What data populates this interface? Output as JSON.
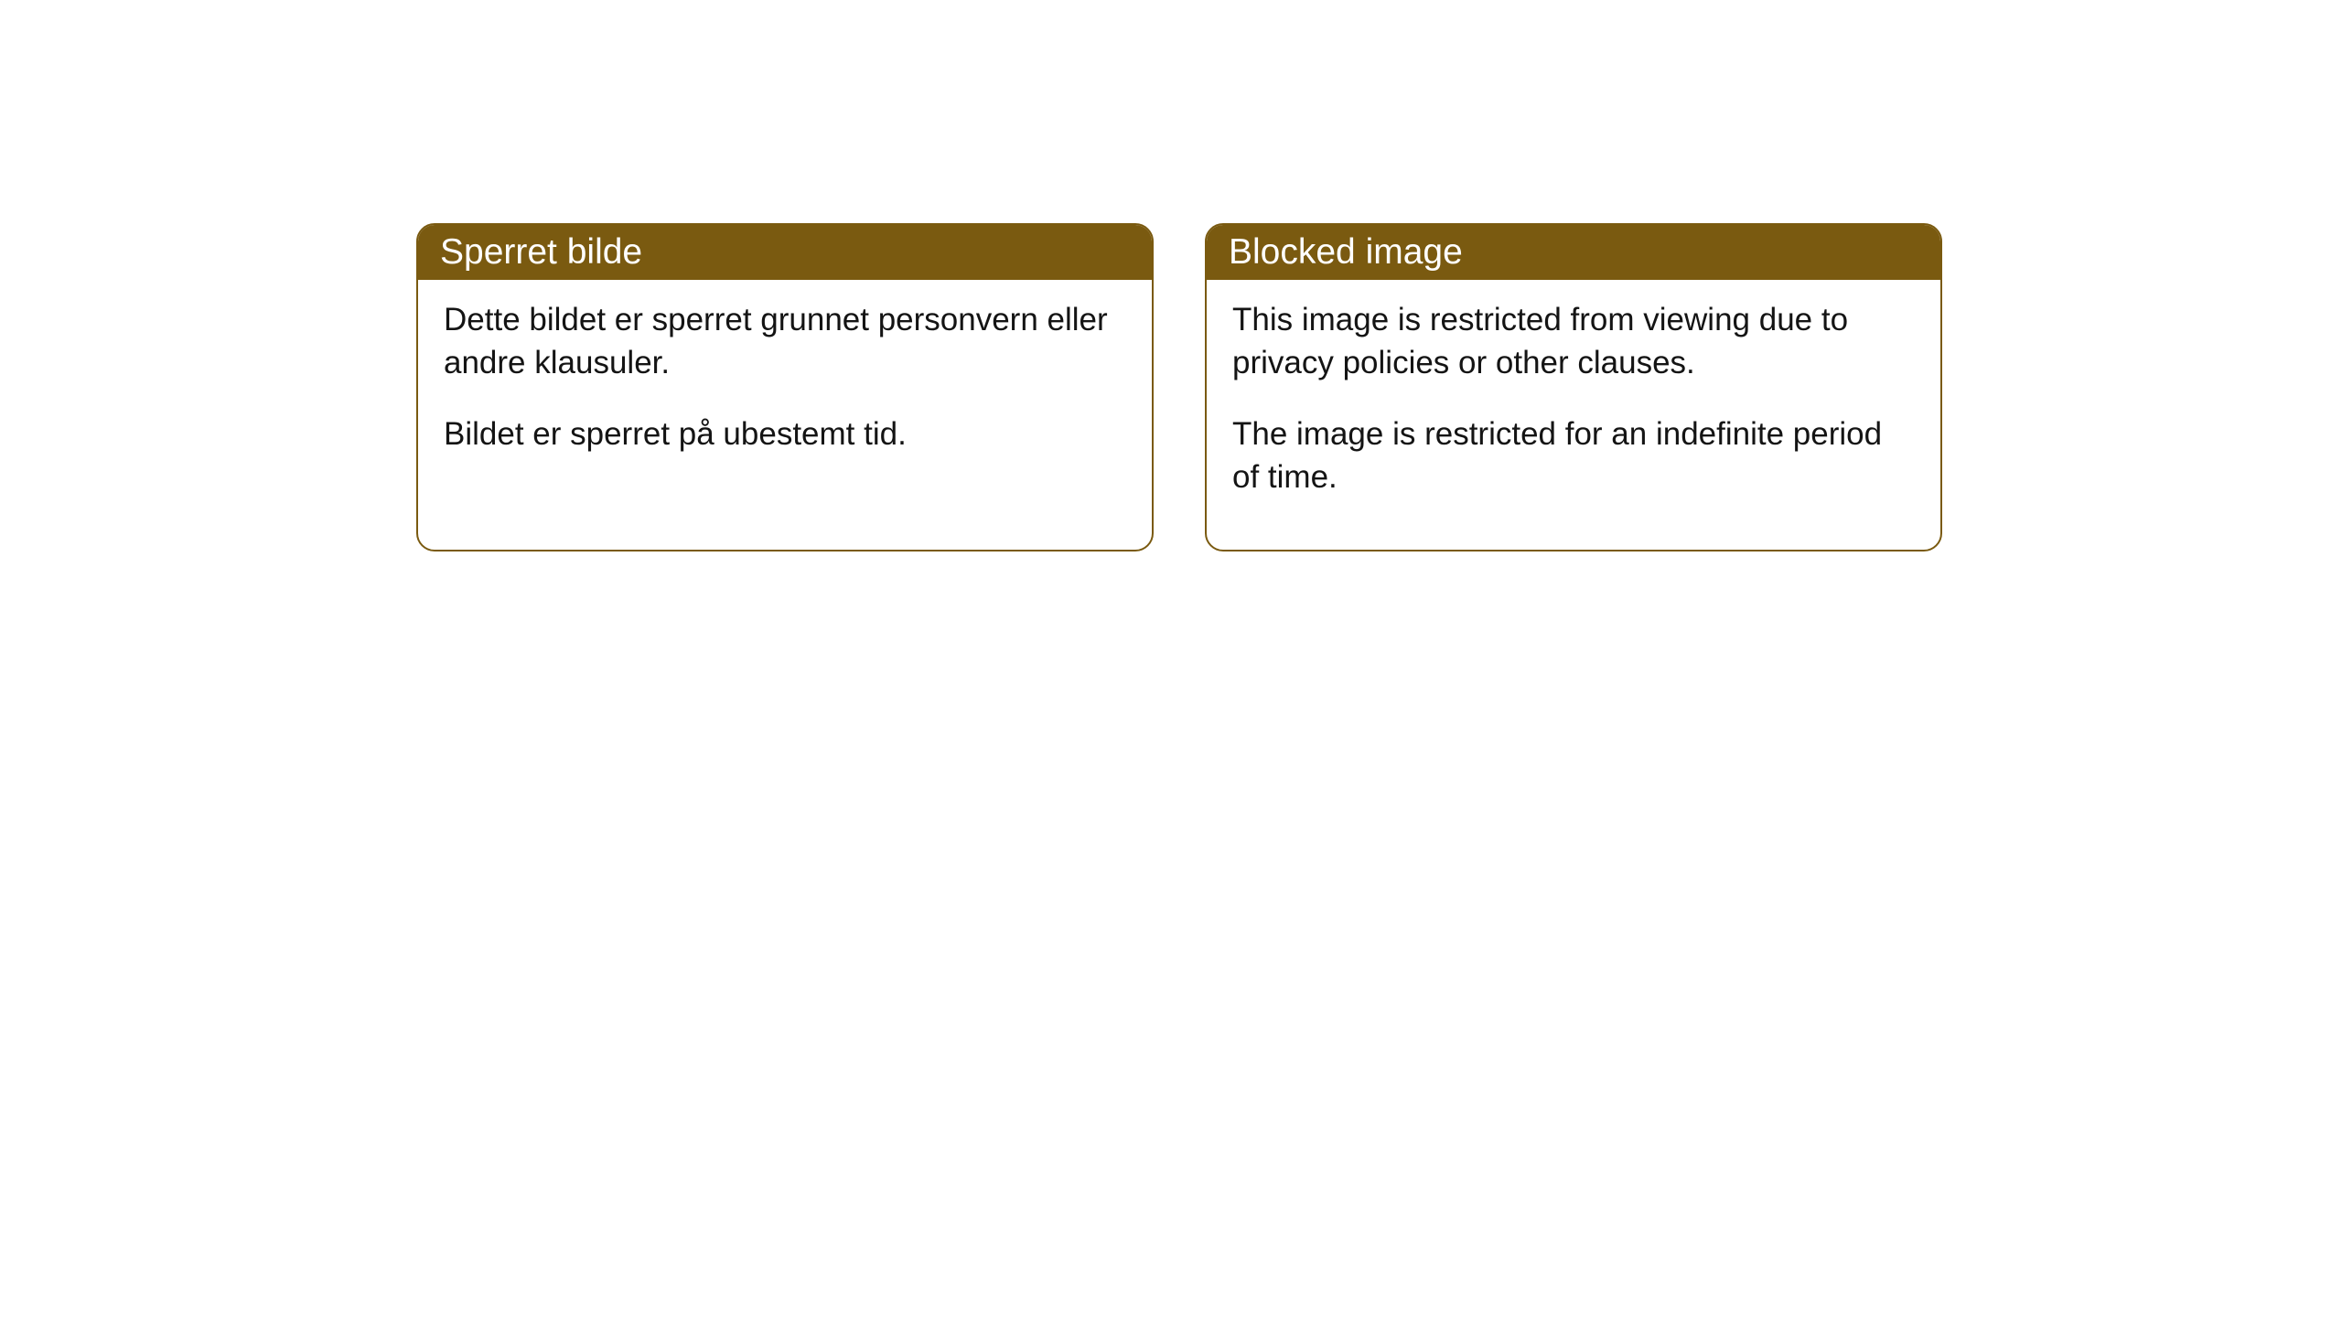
{
  "notices": [
    {
      "title": "Sperret bilde",
      "paragraph1": "Dette bildet er sperret grunnet personvern eller andre klausuler.",
      "paragraph2": "Bildet er sperret på ubestemt tid."
    },
    {
      "title": "Blocked image",
      "paragraph1": "This image is restricted from viewing due to privacy policies or other clauses.",
      "paragraph2": "The image is restricted for an indefinite period of time."
    }
  ],
  "styling": {
    "header_background": "#7a5a10",
    "header_text_color": "#ffffff",
    "border_color": "#7a5a10",
    "body_text_color": "#141414",
    "page_background": "#ffffff",
    "border_radius": 20,
    "title_fontsize": 39,
    "body_fontsize": 35
  }
}
